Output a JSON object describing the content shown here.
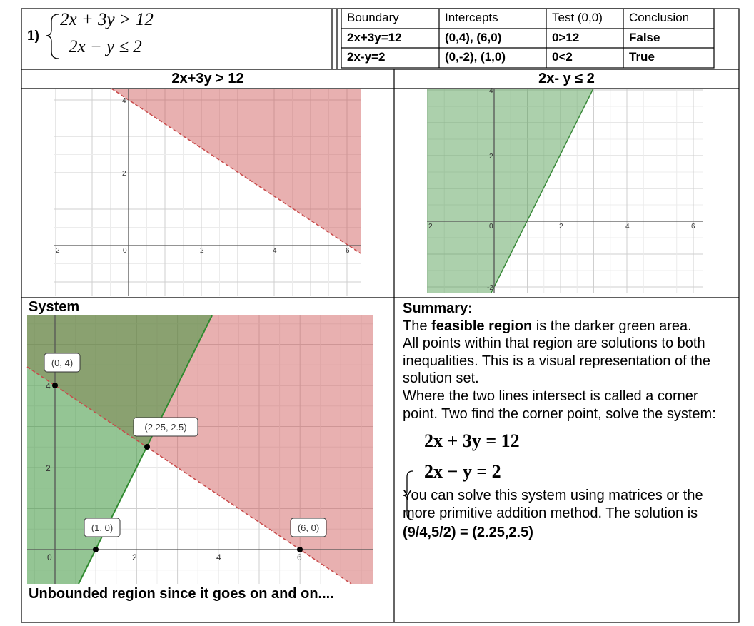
{
  "problem": {
    "number": "1)",
    "inequalities": [
      "2x + 3y > 12",
      "2x − y ≤ 2"
    ]
  },
  "table": {
    "header": [
      "Boundary",
      "Intercepts",
      "Test (0,0)",
      "Conclusion"
    ],
    "rows": [
      [
        "2x+3y=12",
        "(0,4), (6,0)",
        "0>12",
        "False"
      ],
      [
        "2x-y=2",
        "(0,-2), (1,0)",
        "0<2",
        "True"
      ]
    ]
  },
  "graph1": {
    "title": "2x+3y > 12",
    "x_tick_labels": [
      "2",
      "0",
      "2",
      "4",
      "6"
    ],
    "y_tick_labels": [
      "4",
      "2"
    ]
  },
  "graph2": {
    "title": "2x- y ≤ 2",
    "x_tick_labels": [
      "2",
      "0",
      "2",
      "4",
      "6"
    ],
    "y_tick_labels": [
      "4",
      "2",
      "-2"
    ]
  },
  "system": {
    "title": "System",
    "x_tick_labels": [
      "0",
      "2",
      "4",
      "6"
    ],
    "y_tick_labels": [
      "4",
      "2"
    ],
    "point_labels": [
      "(0, 4)",
      "(2.25, 2.5)",
      "(1, 0)",
      "(6, 0)"
    ],
    "caption": "Unbounded region since it goes on and on...."
  },
  "summary": {
    "heading": "Summary:",
    "paragraph1": {
      "before": "The",
      "bold": "feasible region",
      "after": "is the darker green area."
    },
    "paragraph2": "All points within that region are solutions to both inequalities. This is a visual representation of the solution set.",
    "paragraph3": "Where the two lines intersect is called a corner point. Two find the corner point, solve the system:",
    "equations": [
      "2x + 3y = 12",
      "2x − y = 2"
    ],
    "paragraph4": "You can solve this system using matrices or the more primitive addition method. The solution is",
    "solution": "(9/4,5/2) = (2.25,2.5)"
  }
}
